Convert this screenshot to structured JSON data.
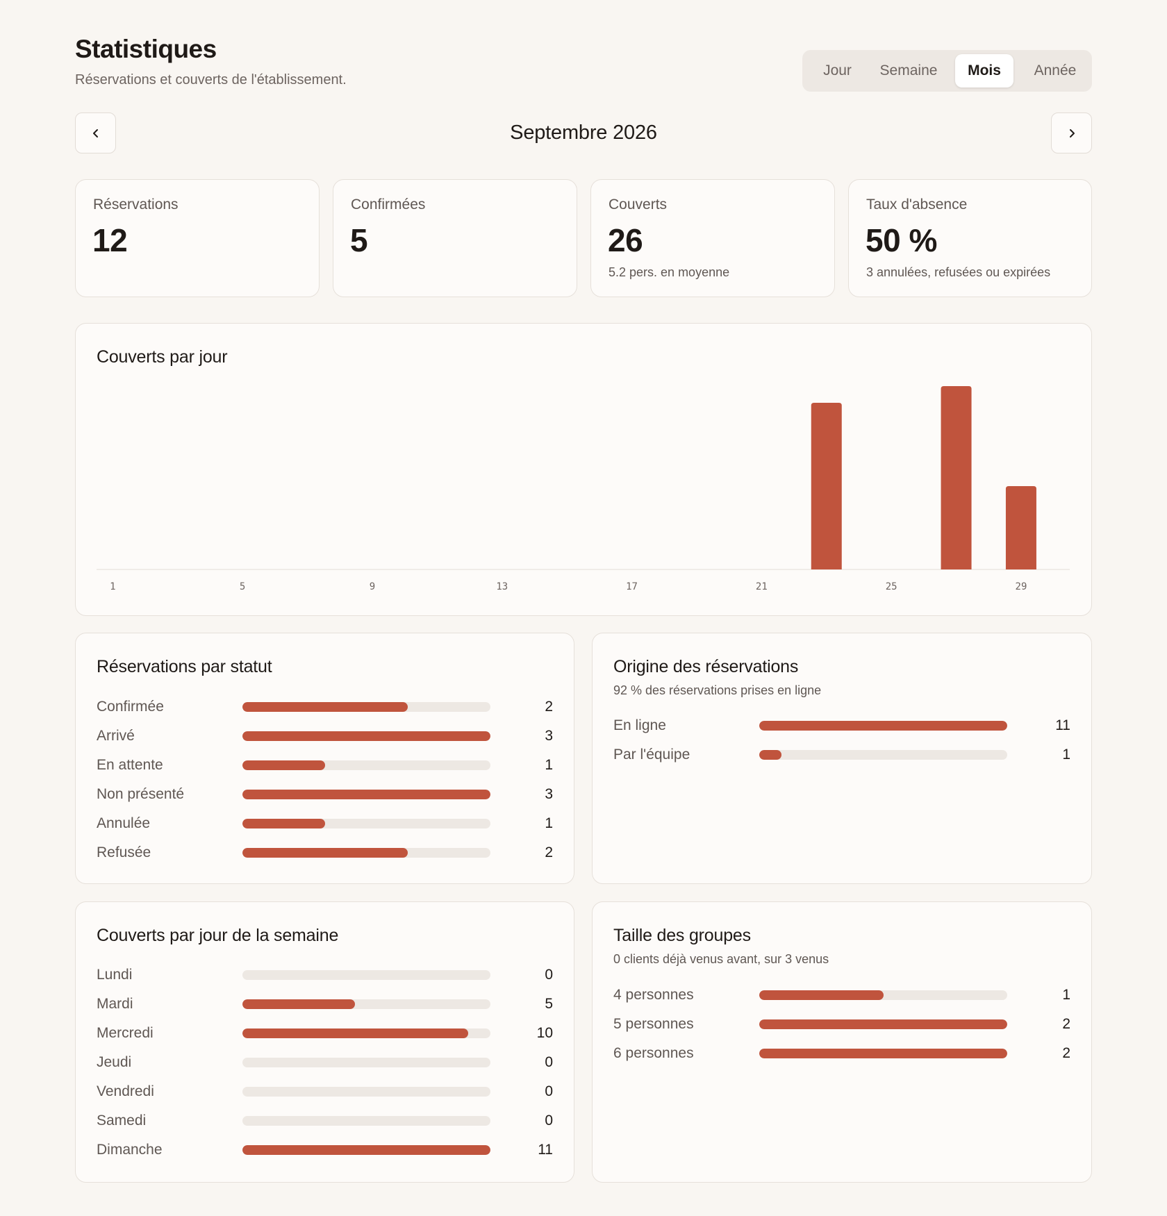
{
  "header": {
    "title": "Statistiques",
    "subtitle": "Réservations et couverts de l'établissement."
  },
  "period_tabs": [
    {
      "label": "Jour",
      "active": false
    },
    {
      "label": "Semaine",
      "active": false
    },
    {
      "label": "Mois",
      "active": true
    },
    {
      "label": "Année",
      "active": false
    }
  ],
  "month_nav": {
    "label": "Septembre 2026",
    "prev_icon": "chevron-left-icon",
    "next_icon": "chevron-right-icon"
  },
  "kpis": [
    {
      "label": "Réservations",
      "value": "12",
      "sub": ""
    },
    {
      "label": "Confirmées",
      "value": "5",
      "sub": ""
    },
    {
      "label": "Couverts",
      "value": "26",
      "sub": "5.2 pers. en moyenne"
    },
    {
      "label": "Taux d'absence",
      "value": "50 %",
      "sub": "3 annulées, refusées ou expirées"
    }
  ],
  "colors": {
    "accent": "#c0543d",
    "track": "#ede8e3",
    "background": "#f9f6f2",
    "card": "#fdfbf9"
  },
  "daily": {
    "title": "Couverts par jour"
  },
  "chart_data": {
    "type": "bar",
    "title": "Couverts par jour",
    "categories": [
      "1",
      "2",
      "3",
      "4",
      "5",
      "6",
      "7",
      "8",
      "9",
      "10",
      "11",
      "12",
      "13",
      "14",
      "15",
      "16",
      "17",
      "18",
      "19",
      "20",
      "21",
      "22",
      "23",
      "24",
      "25",
      "26",
      "27",
      "28",
      "29",
      "30"
    ],
    "values": [
      0,
      0,
      0,
      0,
      0,
      0,
      0,
      0,
      0,
      0,
      0,
      0,
      0,
      0,
      0,
      0,
      0,
      0,
      0,
      0,
      0,
      0,
      10,
      0,
      0,
      0,
      11,
      0,
      5,
      0
    ],
    "x_tick_labels": [
      "1",
      "5",
      "9",
      "13",
      "17",
      "21",
      "25",
      "29"
    ],
    "ylim": [
      0,
      11
    ],
    "grid": false,
    "xlabel": "",
    "ylabel": ""
  },
  "status_panel": {
    "title": "Réservations par statut",
    "max": 3,
    "rows": [
      {
        "label": "Confirmée",
        "value": 2
      },
      {
        "label": "Arrivé",
        "value": 3
      },
      {
        "label": "En attente",
        "value": 1
      },
      {
        "label": "Non présenté",
        "value": 3
      },
      {
        "label": "Annulée",
        "value": 1
      },
      {
        "label": "Refusée",
        "value": 2
      }
    ]
  },
  "origin_panel": {
    "title": "Origine des réservations",
    "subtitle": "92 % des réservations prises en ligne",
    "max": 11,
    "rows": [
      {
        "label": "En ligne",
        "value": 11
      },
      {
        "label": "Par l'équipe",
        "value": 1
      }
    ]
  },
  "weekday_panel": {
    "title": "Couverts par jour de la semaine",
    "max": 11,
    "rows": [
      {
        "label": "Lundi",
        "value": 0
      },
      {
        "label": "Mardi",
        "value": 5
      },
      {
        "label": "Mercredi",
        "value": 10
      },
      {
        "label": "Jeudi",
        "value": 0
      },
      {
        "label": "Vendredi",
        "value": 0
      },
      {
        "label": "Samedi",
        "value": 0
      },
      {
        "label": "Dimanche",
        "value": 11
      }
    ]
  },
  "group_panel": {
    "title": "Taille des groupes",
    "subtitle": "0 clients déjà venus avant, sur 3 venus",
    "max": 2,
    "rows": [
      {
        "label": "4 personnes",
        "value": 1
      },
      {
        "label": "5 personnes",
        "value": 2
      },
      {
        "label": "6 personnes",
        "value": 2
      }
    ]
  }
}
